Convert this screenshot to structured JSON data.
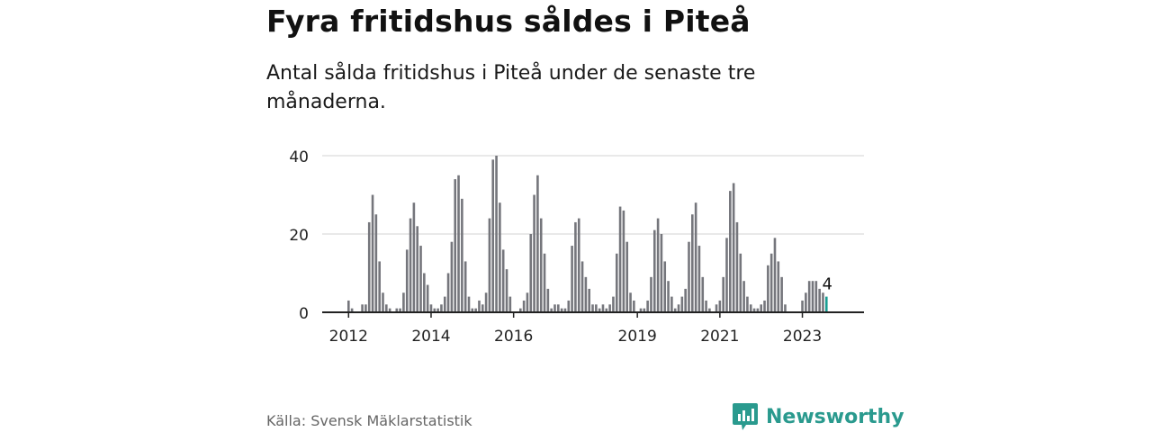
{
  "title": "Fyra fritidshus såldes i Piteå",
  "subtitle": "Antal sålda fritidshus i Piteå under de senaste tre månaderna.",
  "source": "Källa: Svensk Mäklarstatistik",
  "brand": "Newsworthy",
  "colors": {
    "bar": "#75767c",
    "highlight": "#1a9e93",
    "grid": "#dcdcdc",
    "axis": "#222222",
    "brand": "#2a9a8e"
  },
  "chart_data": {
    "type": "bar",
    "ylim": [
      0,
      40
    ],
    "yticks": [
      0,
      20,
      40
    ],
    "xtick_labels": [
      "2012",
      "2014",
      "2016",
      "2019",
      "2021",
      "2023"
    ],
    "grid": true,
    "highlight_label": "4",
    "values": [
      3,
      1,
      0,
      0,
      2,
      2,
      23,
      30,
      25,
      13,
      5,
      2,
      1,
      0,
      1,
      1,
      5,
      16,
      24,
      28,
      22,
      17,
      10,
      7,
      2,
      1,
      1,
      2,
      4,
      10,
      18,
      34,
      35,
      29,
      13,
      4,
      1,
      1,
      3,
      2,
      5,
      24,
      39,
      40,
      28,
      16,
      11,
      4,
      0,
      0,
      1,
      3,
      5,
      20,
      30,
      35,
      24,
      15,
      6,
      1,
      2,
      2,
      1,
      1,
      3,
      17,
      23,
      24,
      13,
      9,
      6,
      2,
      2,
      1,
      2,
      1,
      2,
      4,
      15,
      27,
      26,
      18,
      5,
      3,
      0,
      1,
      1,
      3,
      9,
      21,
      24,
      20,
      13,
      8,
      4,
      1,
      2,
      4,
      6,
      18,
      25,
      28,
      17,
      9,
      3,
      1,
      0,
      2,
      3,
      9,
      19,
      31,
      33,
      23,
      15,
      8,
      4,
      2,
      1,
      1,
      2,
      3,
      12,
      15,
      19,
      13,
      9,
      2,
      0,
      0,
      0,
      0,
      3,
      5,
      8,
      8,
      8,
      6,
      5,
      4
    ]
  }
}
